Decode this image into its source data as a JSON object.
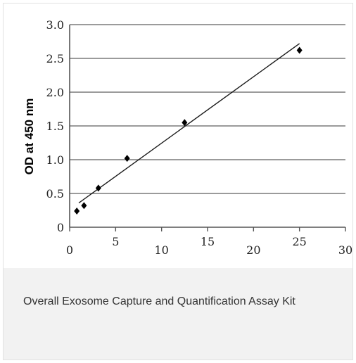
{
  "caption": "Overall Exosome Capture and Quantification Assay Kit",
  "colors": {
    "gridline": "#7a7a7a",
    "axis": "#555555",
    "marker": "#000000",
    "caption_background": "#f2f2f2"
  },
  "chart_data": {
    "type": "scatter",
    "title": "",
    "xlabel": "",
    "ylabel": "OD at 450 nm",
    "xlim": [
      0,
      30
    ],
    "ylim": [
      0,
      3.0
    ],
    "x_ticks": [
      "0",
      "5",
      "10",
      "15",
      "20",
      "25",
      "30"
    ],
    "y_ticks": [
      "0",
      "0.5",
      "1.0",
      "1.5",
      "2.0",
      "2.5",
      "3.0"
    ],
    "grid": true,
    "legend": "none",
    "series": [
      {
        "marker": "diamond",
        "x": [
          0.78,
          1.56,
          3.125,
          6.25,
          12.5,
          25
        ],
        "y": [
          0.24,
          0.32,
          0.58,
          1.02,
          1.55,
          2.62
        ]
      }
    ],
    "trendline": {
      "x": [
        1.0,
        25
      ],
      "y": [
        0.36,
        2.72
      ]
    }
  }
}
